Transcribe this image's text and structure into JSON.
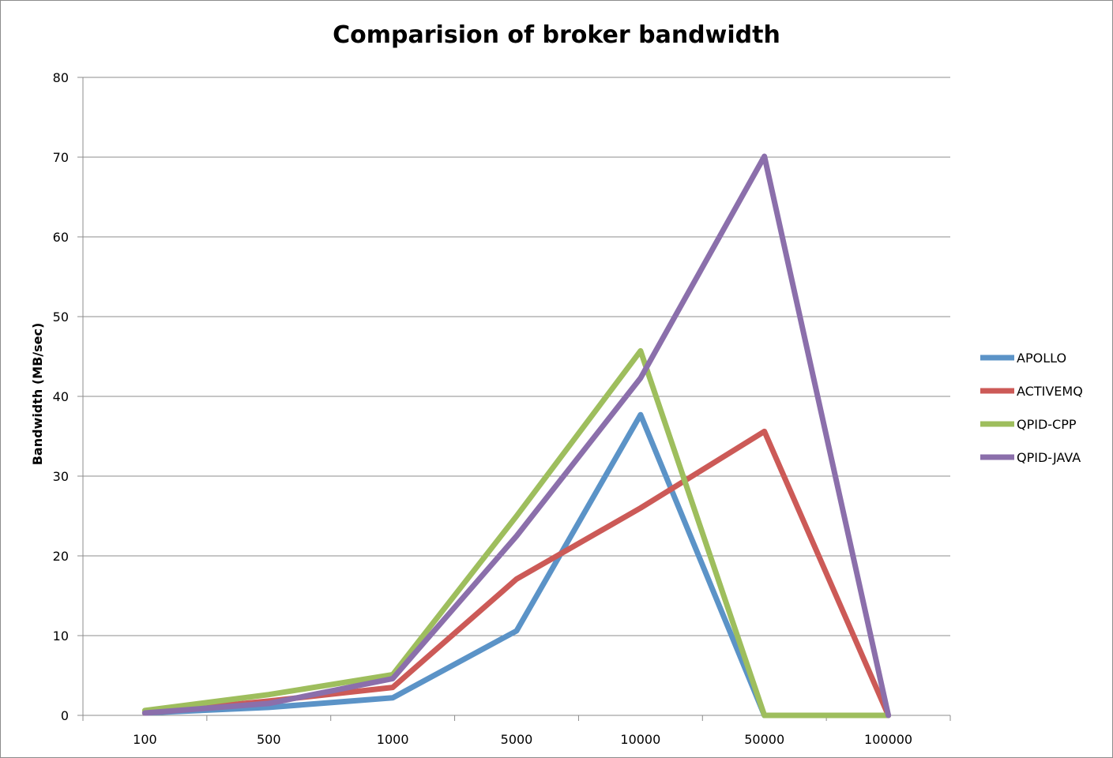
{
  "chart_data": {
    "type": "line",
    "title": "Comparision of broker bandwidth",
    "xlabel": "",
    "ylabel": "Bandwidth (MB/sec)",
    "categories": [
      "100",
      "500",
      "1000",
      "5000",
      "10000",
      "50000",
      "100000"
    ],
    "ylim": [
      0,
      80
    ],
    "yticks": [
      0,
      10,
      20,
      30,
      40,
      50,
      60,
      70,
      80
    ],
    "grid": "horizontal",
    "legend": "right",
    "series": [
      {
        "name": "APOLLO",
        "color": "#5b93c7",
        "values": [
          0.3,
          1.0,
          2.2,
          10.6,
          37.7,
          0,
          0
        ]
      },
      {
        "name": "ACTIVEMQ",
        "color": "#cc5a57",
        "values": [
          0.3,
          1.8,
          3.5,
          17.1,
          26.0,
          35.6,
          0
        ]
      },
      {
        "name": "QPID-CPP",
        "color": "#9ebe5d",
        "values": [
          0.6,
          2.6,
          5.1,
          25.0,
          45.7,
          0,
          0
        ]
      },
      {
        "name": "QPID-JAVA",
        "color": "#8b6fab",
        "values": [
          0.3,
          1.5,
          4.6,
          22.5,
          42.3,
          70.1,
          0
        ]
      }
    ]
  }
}
